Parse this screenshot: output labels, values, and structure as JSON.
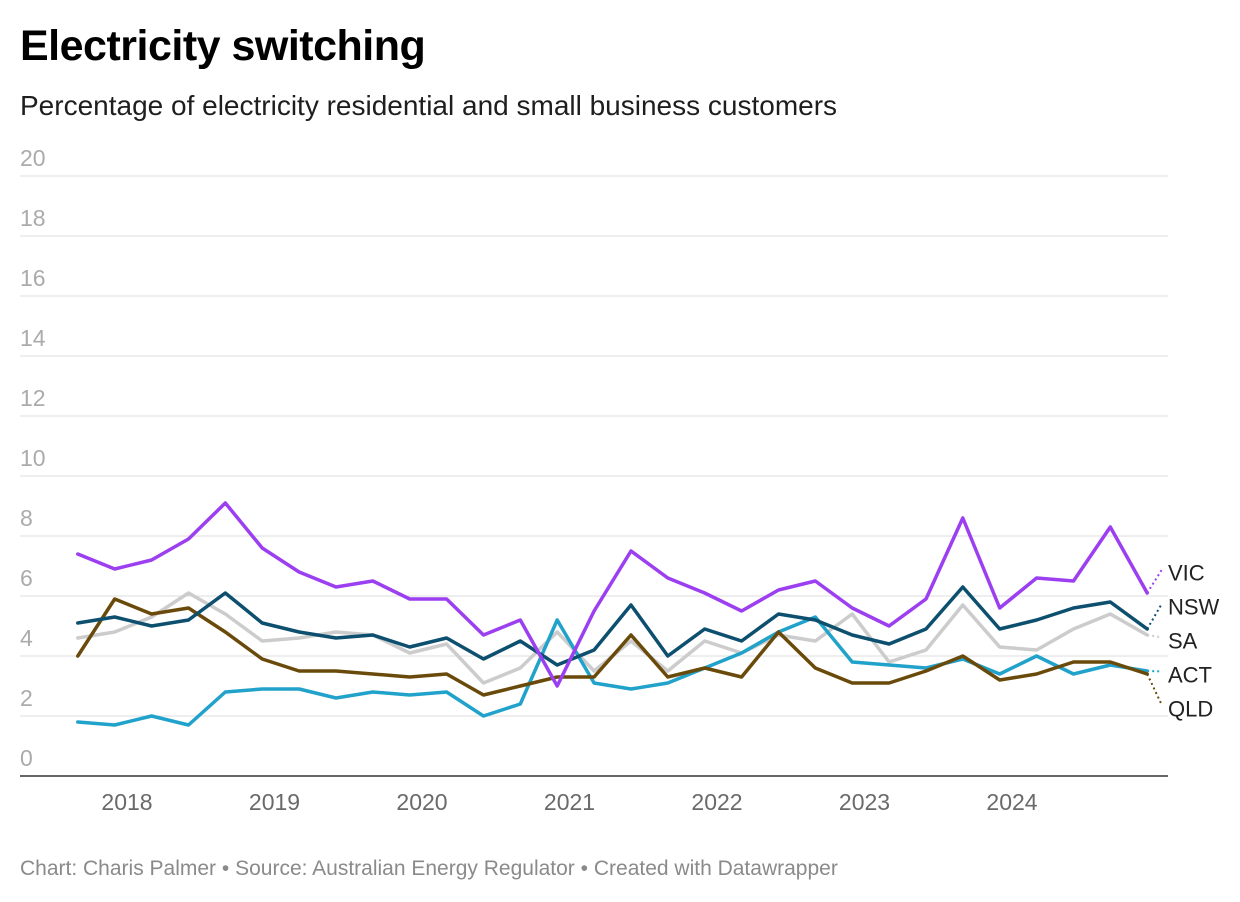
{
  "chart_data": {
    "type": "line",
    "title": "Electricity switching",
    "subtitle": "Percentage of electricity residential and small business customers",
    "ylim": [
      0,
      20
    ],
    "yticks": [
      0,
      2,
      4,
      6,
      8,
      10,
      12,
      14,
      16,
      18,
      20
    ],
    "xticks": [
      "2018",
      "2019",
      "2020",
      "2021",
      "2022",
      "2023",
      "2024"
    ],
    "grid": true,
    "legend": "right",
    "x": [
      "2017-09",
      "2017-12",
      "2018-03",
      "2018-06",
      "2018-09",
      "2018-12",
      "2019-03",
      "2019-06",
      "2019-09",
      "2019-12",
      "2020-03",
      "2020-06",
      "2020-09",
      "2020-12",
      "2021-03",
      "2021-06",
      "2021-09",
      "2021-12",
      "2022-03",
      "2022-06",
      "2022-09",
      "2022-12",
      "2023-03",
      "2023-06",
      "2023-09",
      "2023-12",
      "2024-03",
      "2024-06",
      "2024-09",
      "2024-12"
    ],
    "series": [
      {
        "name": "VIC",
        "color": "#9b3ff0",
        "values": [
          7.4,
          6.9,
          7.2,
          7.9,
          9.1,
          7.6,
          6.8,
          6.3,
          6.5,
          5.9,
          5.9,
          4.7,
          5.2,
          3.0,
          5.5,
          7.5,
          6.6,
          6.1,
          5.5,
          6.2,
          6.5,
          5.6,
          5.0,
          5.9,
          8.6,
          5.6,
          6.6,
          6.5,
          8.3,
          6.1
        ]
      },
      {
        "name": "NSW",
        "color": "#0d4f6e",
        "values": [
          5.1,
          5.3,
          5.0,
          5.2,
          6.1,
          5.1,
          4.8,
          4.6,
          4.7,
          4.3,
          4.6,
          3.9,
          4.5,
          3.7,
          4.2,
          5.7,
          4.0,
          4.9,
          4.5,
          5.4,
          5.2,
          4.7,
          4.4,
          4.9,
          6.3,
          4.9,
          5.2,
          5.6,
          5.8,
          4.9
        ]
      },
      {
        "name": "SA",
        "color": "#cccccc",
        "values": [
          4.6,
          4.8,
          5.3,
          6.1,
          5.4,
          4.5,
          4.6,
          4.8,
          4.7,
          4.1,
          4.4,
          3.1,
          3.6,
          4.8,
          3.5,
          4.5,
          3.5,
          4.5,
          4.1,
          4.7,
          4.5,
          5.4,
          3.8,
          4.2,
          5.7,
          4.3,
          4.2,
          4.9,
          5.4,
          4.7
        ]
      },
      {
        "name": "ACT",
        "color": "#21a2cb",
        "values": [
          1.8,
          1.7,
          2.0,
          1.7,
          2.8,
          2.9,
          2.9,
          2.6,
          2.8,
          2.7,
          2.8,
          2.0,
          2.4,
          5.2,
          3.1,
          2.9,
          3.1,
          3.6,
          4.1,
          4.8,
          5.3,
          3.8,
          3.7,
          3.6,
          3.9,
          3.4,
          4.0,
          3.4,
          3.7,
          3.5
        ]
      },
      {
        "name": "QLD",
        "color": "#6a4a0a",
        "values": [
          4.0,
          5.9,
          5.4,
          5.6,
          4.8,
          3.9,
          3.5,
          3.5,
          3.4,
          3.3,
          3.4,
          2.7,
          3.0,
          3.3,
          3.3,
          4.7,
          3.3,
          3.6,
          3.3,
          4.8,
          3.6,
          3.1,
          3.1,
          3.5,
          4.0,
          3.2,
          3.4,
          3.8,
          3.8,
          3.4
        ]
      }
    ]
  },
  "footer": {
    "credit": "Chart: Charis Palmer",
    "separator": "•",
    "source": "Source: Australian Energy Regulator",
    "created_with": "Created with Datawrapper"
  }
}
